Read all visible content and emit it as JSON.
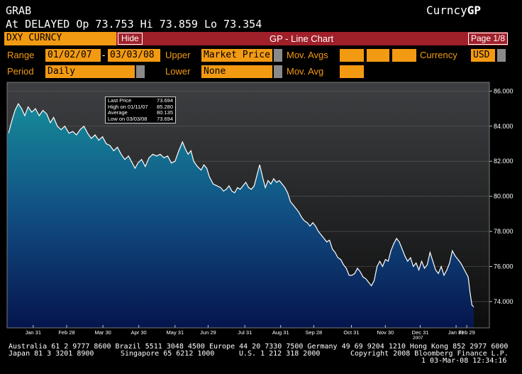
{
  "header": {
    "function": "GRAB",
    "brand_prefix": "Curncy",
    "brand_suffix": "GP",
    "quote_line": "At DELAYED  Op 73.753 Hi 73.859 Lo 73.354"
  },
  "toolbar": {
    "ticker": "DXY CURNCY",
    "hide_label": "Hide",
    "title": "GP - Line Chart",
    "page": "Page 1/8"
  },
  "controls": {
    "range_label": "Range",
    "range_start": "01/02/07",
    "range_sep": "-",
    "range_end": "03/03/08",
    "upper_label": "Upper",
    "upper_value": "Market Price",
    "movavgs_label": "Mov. Avgs",
    "currency_label": "Currency",
    "currency_value": "USD",
    "period_label": "Period",
    "period_value": "Daily",
    "lower_label": "Lower",
    "lower_value": "None",
    "movavg_label": "Mov. Avg"
  },
  "legend": {
    "rows": [
      {
        "label": "Last Price",
        "value": "73.694"
      },
      {
        "label": "High on  01/11/07",
        "value": "85.280"
      },
      {
        "label": "Average",
        "value": "80.135"
      },
      {
        "label": "Low on  03/03/08",
        "value": "73.694"
      }
    ]
  },
  "chart_data": {
    "type": "area",
    "ylim": [
      72.5,
      86.5
    ],
    "yticks": [
      74,
      76,
      78,
      80,
      82,
      84,
      86
    ],
    "ytick_labels": [
      "74.000",
      "76.000",
      "78.000",
      "80.000",
      "82.000",
      "84.000",
      "86.000"
    ],
    "xticks": [
      {
        "label": "Jan 31",
        "t": 0.053
      },
      {
        "label": "Feb 28",
        "t": 0.125
      },
      {
        "label": "Mar 30",
        "t": 0.203
      },
      {
        "label": "Apr 30",
        "t": 0.28
      },
      {
        "label": "May 31",
        "t": 0.358
      },
      {
        "label": "Jun 29",
        "t": 0.429
      },
      {
        "label": "Jul 31",
        "t": 0.508
      },
      {
        "label": "Aug 31",
        "t": 0.585
      },
      {
        "label": "Sep 28",
        "t": 0.656
      },
      {
        "label": "Oct 31",
        "t": 0.737
      },
      {
        "label": "Nov 30",
        "t": 0.81
      },
      {
        "label": "Dec 31",
        "t": 0.885
      },
      {
        "label": "Jan 31",
        "t": 0.962
      },
      {
        "label": "Feb 29",
        "t": 0.985
      }
    ],
    "year_label": "2007",
    "year_t": 0.88,
    "series": [
      {
        "points": [
          [
            0.0,
            83.6
          ],
          [
            0.007,
            84.3
          ],
          [
            0.014,
            84.9
          ],
          [
            0.021,
            85.28
          ],
          [
            0.028,
            85.0
          ],
          [
            0.035,
            84.6
          ],
          [
            0.042,
            85.1
          ],
          [
            0.05,
            84.8
          ],
          [
            0.058,
            85.0
          ],
          [
            0.066,
            84.6
          ],
          [
            0.074,
            84.9
          ],
          [
            0.082,
            84.7
          ],
          [
            0.09,
            84.2
          ],
          [
            0.097,
            84.5
          ],
          [
            0.105,
            84.0
          ],
          [
            0.113,
            83.8
          ],
          [
            0.121,
            84.0
          ],
          [
            0.13,
            83.6
          ],
          [
            0.138,
            83.7
          ],
          [
            0.146,
            83.5
          ],
          [
            0.154,
            83.8
          ],
          [
            0.162,
            84.0
          ],
          [
            0.17,
            83.6
          ],
          [
            0.178,
            83.3
          ],
          [
            0.186,
            83.5
          ],
          [
            0.194,
            83.2
          ],
          [
            0.202,
            83.4
          ],
          [
            0.21,
            83.0
          ],
          [
            0.218,
            82.9
          ],
          [
            0.226,
            82.6
          ],
          [
            0.234,
            82.8
          ],
          [
            0.242,
            82.4
          ],
          [
            0.25,
            82.1
          ],
          [
            0.258,
            82.3
          ],
          [
            0.266,
            81.9
          ],
          [
            0.272,
            81.6
          ],
          [
            0.278,
            81.9
          ],
          [
            0.286,
            82.1
          ],
          [
            0.294,
            81.7
          ],
          [
            0.302,
            82.2
          ],
          [
            0.31,
            82.4
          ],
          [
            0.318,
            82.3
          ],
          [
            0.326,
            82.4
          ],
          [
            0.334,
            82.2
          ],
          [
            0.342,
            82.3
          ],
          [
            0.35,
            81.9
          ],
          [
            0.358,
            82.0
          ],
          [
            0.366,
            82.6
          ],
          [
            0.374,
            83.1
          ],
          [
            0.38,
            82.7
          ],
          [
            0.386,
            82.4
          ],
          [
            0.392,
            82.6
          ],
          [
            0.398,
            82.0
          ],
          [
            0.406,
            81.7
          ],
          [
            0.414,
            81.5
          ],
          [
            0.42,
            81.8
          ],
          [
            0.426,
            81.6
          ],
          [
            0.432,
            81.1
          ],
          [
            0.44,
            80.7
          ],
          [
            0.448,
            80.6
          ],
          [
            0.456,
            80.5
          ],
          [
            0.462,
            80.3
          ],
          [
            0.468,
            80.4
          ],
          [
            0.474,
            80.6
          ],
          [
            0.48,
            80.3
          ],
          [
            0.486,
            80.2
          ],
          [
            0.492,
            80.5
          ],
          [
            0.498,
            80.4
          ],
          [
            0.504,
            80.6
          ],
          [
            0.51,
            80.8
          ],
          [
            0.516,
            80.5
          ],
          [
            0.522,
            80.4
          ],
          [
            0.528,
            80.6
          ],
          [
            0.534,
            81.2
          ],
          [
            0.54,
            81.8
          ],
          [
            0.546,
            81.1
          ],
          [
            0.552,
            80.5
          ],
          [
            0.558,
            80.9
          ],
          [
            0.564,
            80.7
          ],
          [
            0.57,
            81.0
          ],
          [
            0.576,
            80.8
          ],
          [
            0.582,
            80.9
          ],
          [
            0.588,
            80.7
          ],
          [
            0.594,
            80.5
          ],
          [
            0.6,
            80.2
          ],
          [
            0.606,
            79.7
          ],
          [
            0.612,
            79.5
          ],
          [
            0.618,
            79.3
          ],
          [
            0.624,
            79.1
          ],
          [
            0.63,
            78.8
          ],
          [
            0.636,
            78.6
          ],
          [
            0.642,
            78.5
          ],
          [
            0.648,
            78.3
          ],
          [
            0.654,
            78.5
          ],
          [
            0.66,
            78.3
          ],
          [
            0.666,
            78.0
          ],
          [
            0.672,
            77.8
          ],
          [
            0.678,
            77.6
          ],
          [
            0.684,
            77.4
          ],
          [
            0.69,
            77.5
          ],
          [
            0.696,
            77.0
          ],
          [
            0.702,
            76.8
          ],
          [
            0.708,
            76.5
          ],
          [
            0.714,
            76.4
          ],
          [
            0.72,
            76.1
          ],
          [
            0.726,
            75.9
          ],
          [
            0.732,
            75.5
          ],
          [
            0.738,
            75.5
          ],
          [
            0.744,
            75.6
          ],
          [
            0.75,
            75.9
          ],
          [
            0.756,
            75.7
          ],
          [
            0.762,
            75.4
          ],
          [
            0.768,
            75.3
          ],
          [
            0.774,
            75.1
          ],
          [
            0.78,
            74.9
          ],
          [
            0.786,
            75.2
          ],
          [
            0.792,
            76.0
          ],
          [
            0.798,
            76.3
          ],
          [
            0.804,
            76.0
          ],
          [
            0.81,
            76.4
          ],
          [
            0.816,
            76.3
          ],
          [
            0.822,
            76.9
          ],
          [
            0.828,
            77.3
          ],
          [
            0.834,
            77.6
          ],
          [
            0.84,
            77.4
          ],
          [
            0.846,
            77.0
          ],
          [
            0.852,
            76.6
          ],
          [
            0.858,
            76.3
          ],
          [
            0.864,
            76.5
          ],
          [
            0.87,
            76.0
          ],
          [
            0.876,
            76.2
          ],
          [
            0.882,
            75.8
          ],
          [
            0.888,
            76.3
          ],
          [
            0.894,
            75.9
          ],
          [
            0.9,
            76.1
          ],
          [
            0.906,
            76.8
          ],
          [
            0.912,
            76.3
          ],
          [
            0.918,
            75.8
          ],
          [
            0.924,
            75.6
          ],
          [
            0.93,
            76.0
          ],
          [
            0.936,
            75.5
          ],
          [
            0.942,
            75.8
          ],
          [
            0.948,
            76.2
          ],
          [
            0.954,
            76.9
          ],
          [
            0.96,
            76.6
          ],
          [
            0.966,
            76.4
          ],
          [
            0.972,
            76.2
          ],
          [
            0.978,
            75.9
          ],
          [
            0.984,
            75.6
          ],
          [
            0.988,
            75.4
          ],
          [
            0.992,
            74.5
          ],
          [
            0.996,
            73.8
          ],
          [
            1.0,
            73.694
          ]
        ]
      }
    ]
  },
  "footer": {
    "line1": "Australia 61 2 9777 8600 Brazil 5511 3048 4500 Europe 44 20 7330 7500 Germany 49 69 9204 1210 Hong Kong 852 2977 6000",
    "line2_left": "Japan 81 3 3201 8900",
    "line2_mid1": "Singapore 65 6212 1000",
    "line2_mid2": "U.S. 1 212 318 2000",
    "line2_right": "Copyright 2008 Bloomberg Finance L.P.",
    "line3": "1 03-Mar-08 12:34:16"
  }
}
